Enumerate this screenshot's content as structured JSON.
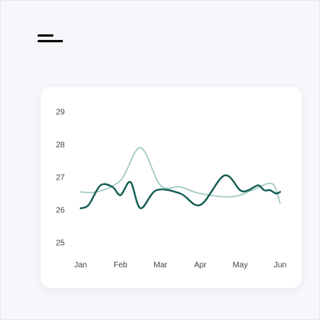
{
  "header": {
    "menu_icon": "hamburger-menu-icon"
  },
  "colors": {
    "background": "#f6f7fb",
    "card": "#ffffff",
    "series_primary": "#0f5a50",
    "series_secondary": "#9ec9bd"
  },
  "chart_data": {
    "type": "line",
    "title": "",
    "xlabel": "",
    "ylabel": "",
    "grid": false,
    "legend": "none",
    "categories": [
      "Jan",
      "Feb",
      "Mar",
      "Apr",
      "May",
      "Jun"
    ],
    "ylim": [
      25,
      29
    ],
    "yticks": [
      29,
      28,
      27,
      26,
      25
    ],
    "series": [
      {
        "x": [
          0.0,
          0.4,
          1.0,
          1.5,
          2.0,
          2.5,
          3.0,
          3.8,
          4.3,
          4.8,
          5.0
        ],
        "values": [
          26.55,
          26.55,
          26.9,
          27.9,
          26.75,
          26.7,
          26.5,
          26.4,
          26.6,
          26.8,
          26.2
        ]
      },
      {
        "x": [
          0.0,
          0.2,
          0.5,
          0.8,
          1.0,
          1.25,
          1.5,
          1.9,
          2.5,
          3.0,
          3.6,
          4.0,
          4.2,
          4.45,
          4.6,
          4.75,
          4.9,
          5.0
        ],
        "values": [
          26.05,
          26.15,
          26.75,
          26.7,
          26.45,
          26.85,
          26.05,
          26.6,
          26.5,
          26.15,
          27.05,
          26.6,
          26.6,
          26.75,
          26.6,
          26.6,
          26.5,
          26.55
        ]
      }
    ]
  }
}
